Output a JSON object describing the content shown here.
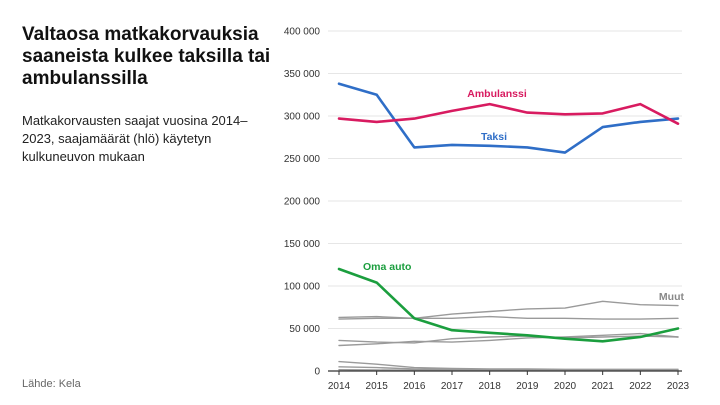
{
  "title": "Valtaosa matkakorvauksia saaneista kulkee taksilla tai ambulanssilla",
  "subtitle": "Matkakorvausten saajat vuosina 2014–2023, saajamäärät (hlö) käytetyn kulkuneuvon mukaan",
  "source": "Lähde: Kela",
  "colors": {
    "ambulanssi": "#d81b60",
    "taksi": "#2f6ec7",
    "oma_auto": "#1b9e3e",
    "muut": "#9a9a9a",
    "axis": "#333333",
    "grid": "#e6e6e6"
  },
  "chart_data": {
    "type": "line",
    "x": [
      "2014",
      "2015",
      "2016",
      "2017",
      "2018",
      "2019",
      "2020",
      "2021",
      "2022",
      "2023"
    ],
    "ylim": [
      0,
      400000
    ],
    "yticks": [
      {
        "value": 0,
        "label": "0"
      },
      {
        "value": 50000,
        "label": "50 000"
      },
      {
        "value": 100000,
        "label": "100 000"
      },
      {
        "value": 150000,
        "label": "150 000"
      },
      {
        "value": 200000,
        "label": "200 000"
      },
      {
        "value": 250000,
        "label": "250 000"
      },
      {
        "value": 300000,
        "label": "300 000"
      },
      {
        "value": 350000,
        "label": "350 000"
      },
      {
        "value": 400000,
        "label": "400 000"
      }
    ],
    "grid": true,
    "series": [
      {
        "key": "taksi",
        "name": "Taksi",
        "values": [
          338000,
          325000,
          263000,
          266000,
          265000,
          263000,
          257000,
          287000,
          293000,
          297000
        ]
      },
      {
        "key": "ambulanssi",
        "name": "Ambulanssi",
        "values": [
          297000,
          293000,
          297000,
          306000,
          314000,
          304000,
          302000,
          303000,
          314000,
          291000
        ]
      },
      {
        "key": "oma_auto",
        "name": "Oma auto",
        "values": [
          120000,
          104000,
          62000,
          48000,
          45000,
          42000,
          38000,
          35000,
          40000,
          50000
        ]
      },
      {
        "key": "muut",
        "name": "Muut",
        "values": [
          63000,
          64000,
          62000,
          67000,
          70000,
          73000,
          74000,
          82000,
          78000,
          77000
        ]
      },
      {
        "key": "muut_2",
        "values": [
          61000,
          62000,
          62000,
          62000,
          64000,
          62000,
          62000,
          61000,
          61000,
          62000
        ]
      },
      {
        "key": "muut_3",
        "values": [
          36000,
          34000,
          33000,
          38000,
          40000,
          41000,
          39000,
          40000,
          41000,
          40000
        ]
      },
      {
        "key": "muut_4",
        "values": [
          30000,
          32000,
          35000,
          34000,
          36000,
          39000,
          40000,
          42000,
          44000,
          40000
        ]
      },
      {
        "key": "muut_5",
        "values": [
          11000,
          8000,
          4000,
          3000,
          2500,
          2500,
          2000,
          2000,
          2000,
          2000
        ]
      },
      {
        "key": "muut_6",
        "values": [
          5000,
          4000,
          2500,
          2000,
          1500,
          1500,
          1200,
          1200,
          1000,
          1000
        ]
      },
      {
        "key": "muut_7",
        "values": [
          1500,
          1200,
          1000,
          900,
          800,
          800,
          700,
          700,
          700,
          700
        ]
      }
    ]
  }
}
